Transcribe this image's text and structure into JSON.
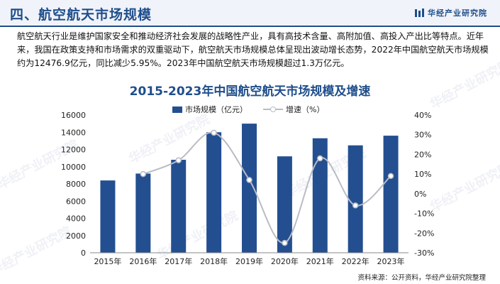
{
  "header": {
    "title": "四、航空航天市场规模",
    "brand": "华经产业研究院"
  },
  "intro_text": "航空航天行业是维护国家安全和推动经济社会发展的战略性产业，具有高技术含量、高附加值、高投入产出比等特点。近年来，我国在政策支持和市场需求的双重驱动下，航空航天市场规模总体呈现出波动增长态势，2022年中国航空航天市场规模约为12476.9亿元，同比减少5.95%。2023年中国航空航天市场规模超过1.3万亿元。",
  "watermark": "华经产业研究院",
  "source": "资料来源：公开资料，华经产业研究院整理",
  "colors": {
    "bar": "#234f91",
    "line": "#b8bcc4",
    "title": "#1f4e8c"
  },
  "chart_data": {
    "type": "bar",
    "title": "2015-2023年中国航空航天市场规模及增速",
    "categories": [
      "2015年",
      "2016年",
      "2017年",
      "2018年",
      "2019年",
      "2020年",
      "2021年",
      "2022年",
      "2023年"
    ],
    "series": [
      {
        "name": "市场规模（亿元）",
        "type": "bar",
        "axis": "left",
        "values": [
          8400,
          9200,
          10800,
          14000,
          15000,
          11200,
          13300,
          12476.9,
          13600
        ]
      },
      {
        "name": "增速（%）",
        "type": "line",
        "axis": "right",
        "values": [
          null,
          10,
          17,
          31,
          7,
          -25,
          18,
          -5.95,
          9
        ]
      }
    ],
    "y_left": {
      "min": 0,
      "max": 16000,
      "ticks": [
        "0",
        "2000",
        "4000",
        "6000",
        "8000",
        "10000",
        "12000",
        "14000",
        "16000"
      ]
    },
    "y_right": {
      "min": -30,
      "max": 40,
      "ticks": [
        "-30%",
        "-20%",
        "-10%",
        "0%",
        "10%",
        "20%",
        "30%",
        "40%"
      ]
    },
    "legend": "top-center",
    "grid": false
  }
}
